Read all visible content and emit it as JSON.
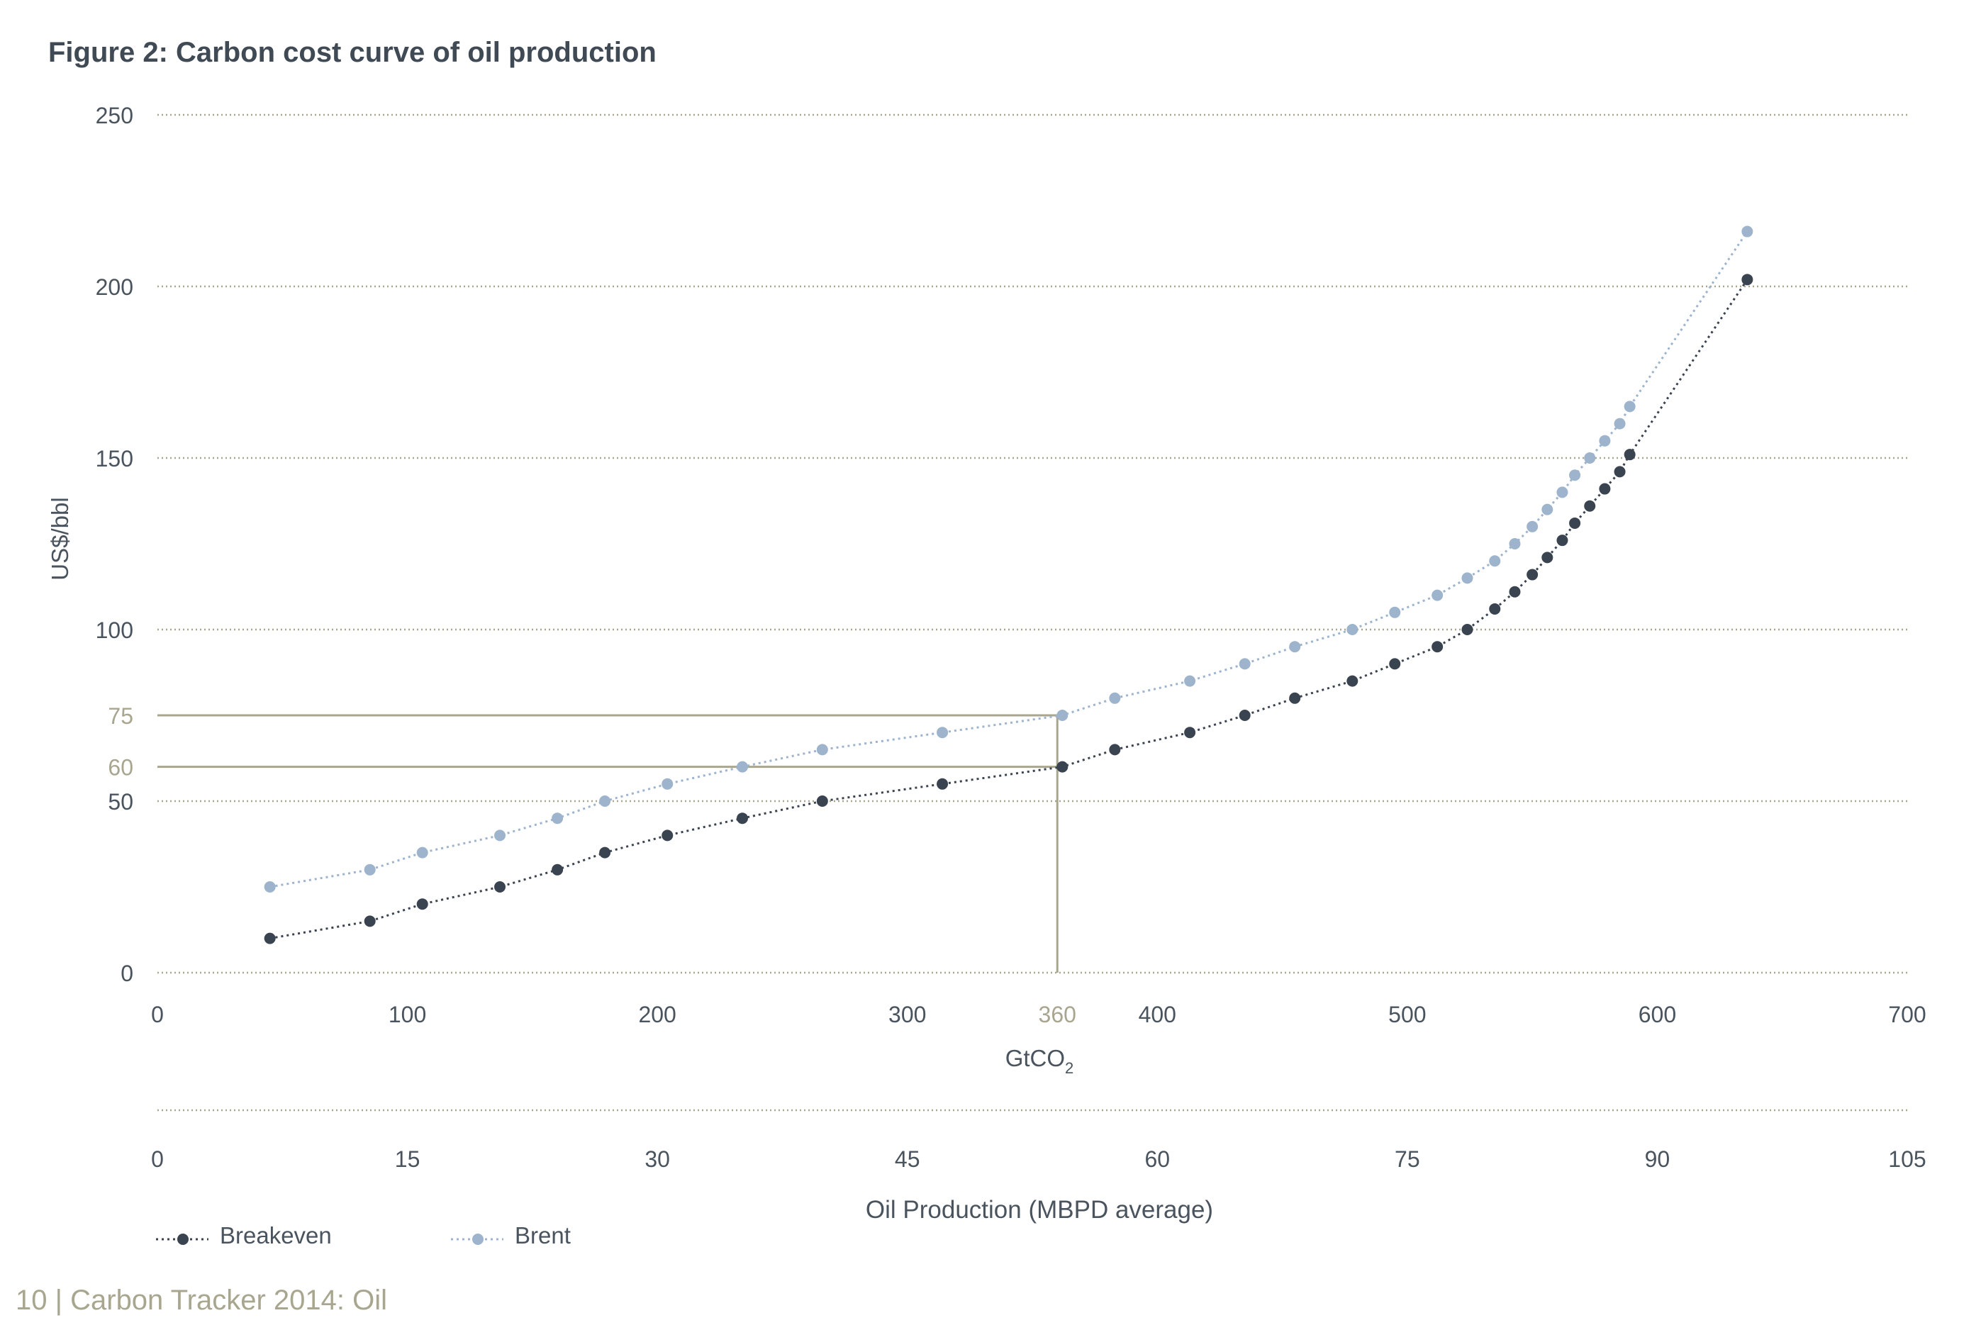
{
  "title": "Figure 2: Carbon cost curve of oil production",
  "footer": "10 | Carbon Tracker 2014: Oil",
  "colors": {
    "breakeven": "#3a4450",
    "brent": "#9db4cc",
    "gridline": "#a8a68e",
    "highlight": "#a8a68e",
    "text": "#4a545e"
  },
  "chart_data": {
    "type": "line",
    "title": "Figure 2: Carbon cost curve of oil production",
    "ylabel": "US$/bbl",
    "xlabel": "GtCO2",
    "xlabel_base": "GtCO",
    "xlabel_sub": "2",
    "x2label": "Oil Production (MBPD average)",
    "ylim": [
      0,
      250
    ],
    "xlim": [
      0,
      700
    ],
    "yticks": [
      0,
      50,
      100,
      150,
      200,
      250
    ],
    "xticks": [
      0,
      100,
      200,
      300,
      400,
      500,
      600,
      700
    ],
    "x2lim": [
      0,
      105
    ],
    "x2ticks": [
      0,
      15,
      30,
      45,
      60,
      75,
      90,
      105
    ],
    "highlight": {
      "x": 360,
      "x_label": "360",
      "y_values": [
        75,
        60
      ],
      "y_labels": [
        "75",
        "60"
      ]
    },
    "legend": [
      "Breakeven",
      "Brent"
    ],
    "series": [
      {
        "name": "Breakeven",
        "x": [
          45,
          85,
          106,
          137,
          160,
          179,
          204,
          234,
          266,
          314,
          362,
          383,
          413,
          435,
          455,
          478,
          495,
          512,
          524,
          535,
          543,
          550,
          556,
          562,
          567,
          573,
          579,
          585,
          589,
          636
        ],
        "y": [
          10,
          15,
          20,
          25,
          30,
          35,
          40,
          45,
          50,
          55,
          60,
          65,
          70,
          75,
          80,
          85,
          90,
          95,
          100,
          106,
          111,
          116,
          121,
          126,
          131,
          136,
          141,
          146,
          151,
          202
        ]
      },
      {
        "name": "Brent",
        "x": [
          45,
          85,
          106,
          137,
          160,
          179,
          204,
          234,
          266,
          314,
          362,
          383,
          413,
          435,
          455,
          478,
          495,
          512,
          524,
          535,
          543,
          550,
          556,
          562,
          567,
          573,
          579,
          585,
          589,
          636
        ],
        "y": [
          25,
          30,
          35,
          40,
          45,
          50,
          55,
          60,
          65,
          70,
          75,
          80,
          85,
          90,
          95,
          100,
          105,
          110,
          115,
          120,
          125,
          130,
          135,
          140,
          145,
          150,
          155,
          160,
          165,
          216
        ]
      }
    ]
  }
}
